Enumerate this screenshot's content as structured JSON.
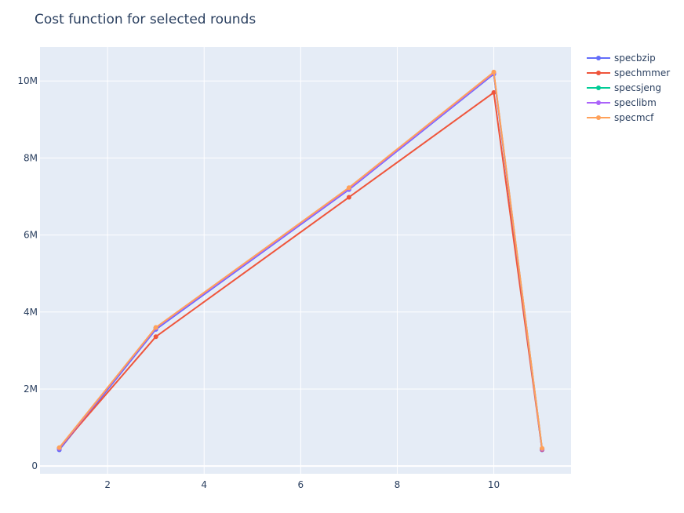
{
  "chart_data": {
    "type": "line",
    "title": "Cost function for selected rounds",
    "xlabel": "",
    "ylabel": "",
    "xlim": [
      0.6,
      11.6
    ],
    "ylim": [
      -200000,
      10880000
    ],
    "x_ticks": [
      2,
      4,
      6,
      8,
      10
    ],
    "x_tick_labels": [
      "2",
      "4",
      "6",
      "8",
      "10"
    ],
    "y_ticks": [
      0,
      2000000,
      4000000,
      6000000,
      8000000,
      10000000
    ],
    "y_tick_labels": [
      "0",
      "2M",
      "4M",
      "6M",
      "8M",
      "10M"
    ],
    "grid": true,
    "legend_position": "top-right",
    "x": [
      1,
      3,
      7,
      10,
      11
    ],
    "series": [
      {
        "name": "specbzip",
        "color": "#636efa",
        "values": [
          420000,
          3550000,
          7180000,
          10180000,
          420000
        ]
      },
      {
        "name": "spechmmer",
        "color": "#ef553b",
        "values": [
          460000,
          3360000,
          6980000,
          9700000,
          430000
        ]
      },
      {
        "name": "specsjeng",
        "color": "#00cc96",
        "values": [
          470000,
          3590000,
          7210000,
          10200000,
          450000
        ]
      },
      {
        "name": "speclibm",
        "color": "#ab63fa",
        "values": [
          460000,
          3580000,
          7200000,
          10200000,
          440000
        ]
      },
      {
        "name": "specmcf",
        "color": "#ffa15a",
        "values": [
          480000,
          3600000,
          7230000,
          10230000,
          460000
        ]
      }
    ]
  }
}
